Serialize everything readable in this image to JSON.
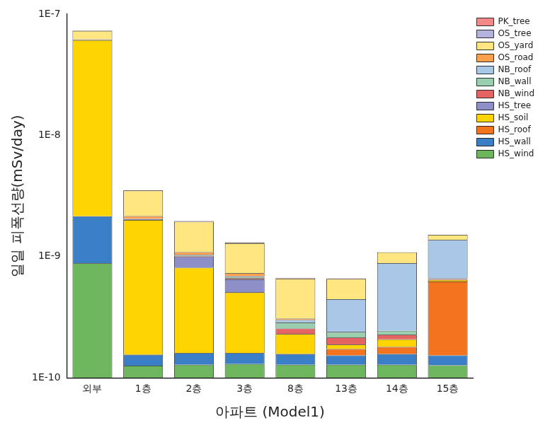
{
  "chart_data": {
    "type": "bar",
    "stacked": true,
    "log": "y",
    "grid": false,
    "legend": "right",
    "x_label": "아파트 (Model1)",
    "y_label": "일일 피폭선량(mSv/day)",
    "categories": [
      "외부",
      "1층",
      "2층",
      "3층",
      "8층",
      "13층",
      "14층",
      "15층"
    ],
    "ylim": [
      1e-10,
      1e-07
    ],
    "yticks": [
      {
        "value": 1e-10,
        "label": "1E-10"
      },
      {
        "value": 1e-09,
        "label": "1E-9"
      },
      {
        "value": 1e-08,
        "label": "1E-8"
      },
      {
        "value": 1e-07,
        "label": "1E-7"
      }
    ],
    "series": [
      {
        "name": "HS_wind",
        "color": "#6db65e",
        "values": [
          8.8e-10,
          1.26e-10,
          1.28e-10,
          1.3e-10,
          1.28e-10,
          1.28e-10,
          1.28e-10,
          1.27e-10
        ]
      },
      {
        "name": "HS_wall",
        "color": "#3a7fc6",
        "values": [
          1.27e-09,
          2.9e-11,
          3.2e-11,
          3e-11,
          2.9e-11,
          2.5e-11,
          2.9e-11,
          2.6e-11
        ]
      },
      {
        "name": "HS_roof",
        "color": "#f4731f",
        "values": [
          0,
          0,
          0,
          0,
          0,
          2e-11,
          2.3e-11,
          4.7e-10
        ]
      },
      {
        "name": "HS_soil",
        "color": "#ffd400",
        "values": [
          5.9e-08,
          1.85e-09,
          6.5e-10,
          3.47e-10,
          7.3e-11,
          1.5e-11,
          2.8e-11,
          2e-11
        ]
      },
      {
        "name": "HS_tree",
        "color": "#8e8ec8",
        "values": [
          5e-10,
          3e-11,
          1.9e-10,
          1.43e-10,
          0,
          0,
          0,
          0
        ]
      },
      {
        "name": "NB_wind",
        "color": "#e46464",
        "values": [
          0,
          1e-11,
          1.5e-11,
          1.5e-11,
          2.5e-11,
          2.7e-11,
          1.9e-11,
          1e-11
        ]
      },
      {
        "name": "NB_wall",
        "color": "#99cfae",
        "values": [
          0,
          1e-11,
          1.5e-11,
          1.5e-11,
          3.1e-11,
          2.4e-11,
          1.7e-11,
          1e-11
        ]
      },
      {
        "name": "NB_roof",
        "color": "#a9c8e8",
        "values": [
          0,
          5e-12,
          1e-11,
          1e-11,
          1.4e-11,
          2.06e-10,
          6.4e-10,
          7.1e-10
        ]
      },
      {
        "name": "OS_road",
        "color": "#ffa04d",
        "values": [
          2e-10,
          1e-10,
          5e-11,
          4e-11,
          8e-12,
          0,
          0,
          0
        ]
      },
      {
        "name": "OS_yard",
        "color": "#ffe680",
        "values": [
          1.1e-08,
          1.35e-09,
          8.5e-10,
          5.6e-10,
          3.5e-10,
          2.1e-10,
          2e-10,
          1.4e-10
        ]
      },
      {
        "name": "OS_tree",
        "color": "#b3b3dd",
        "values": [
          3e-10,
          2e-11,
          2e-11,
          1.5e-11,
          5e-12,
          5e-12,
          0,
          0
        ]
      },
      {
        "name": "PK_tree",
        "color": "#f4898a",
        "values": [
          0,
          1e-11,
          1e-11,
          1e-11,
          5e-12,
          0,
          0,
          0
        ]
      }
    ]
  }
}
